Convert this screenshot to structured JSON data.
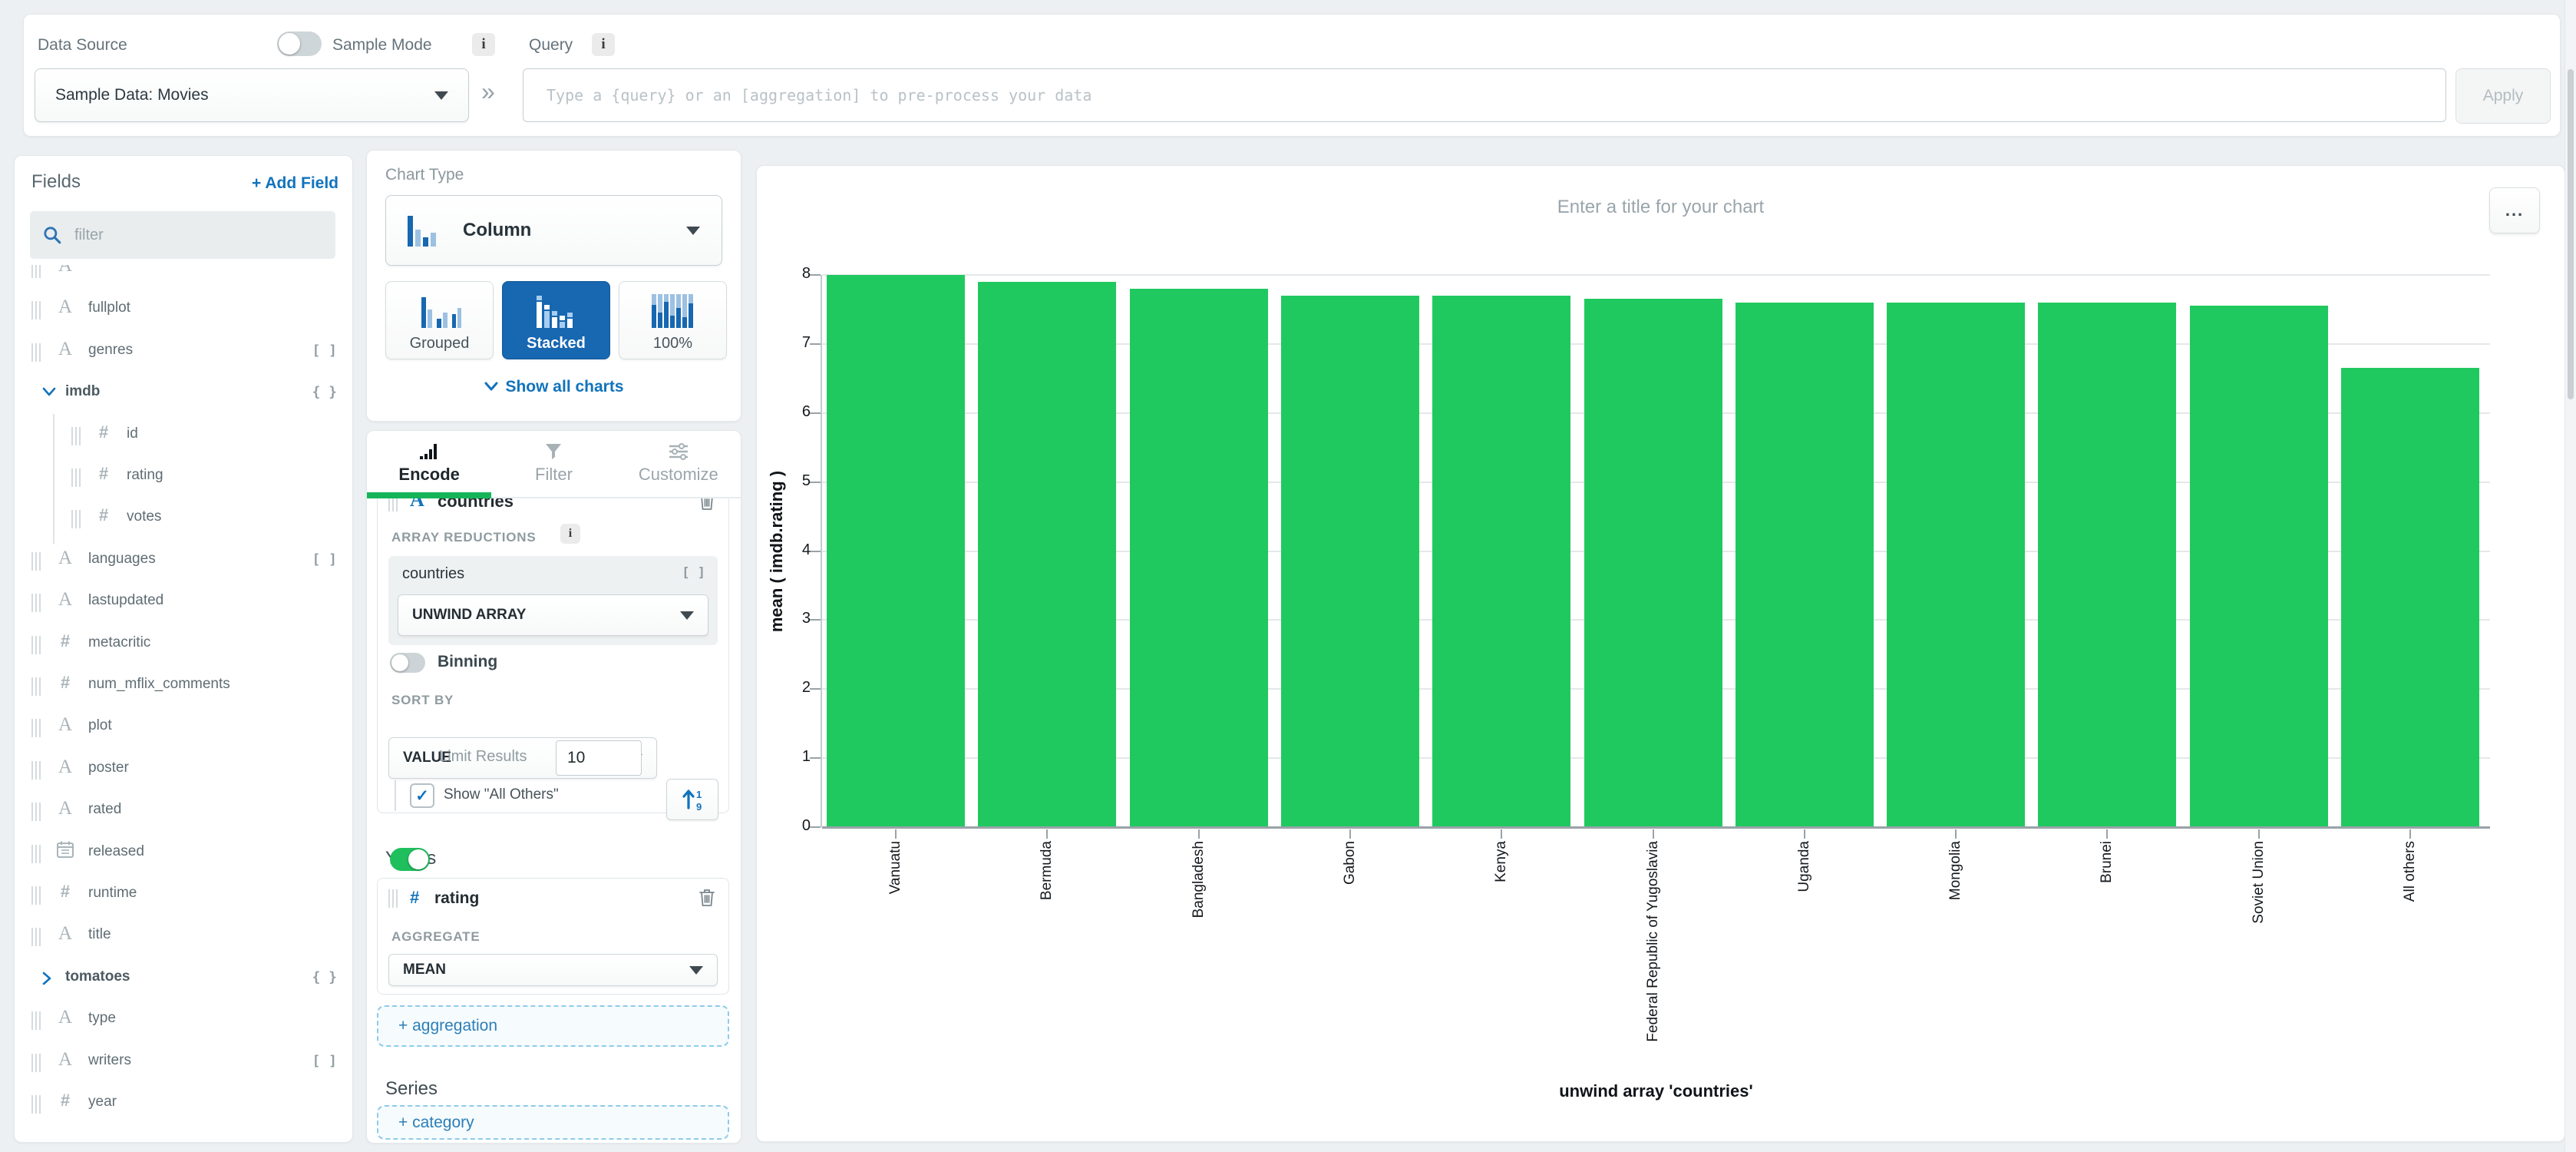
{
  "topbar": {
    "data_source_label": "Data Source",
    "sample_mode_label": "Sample Mode",
    "query_label": "Query",
    "data_source_value": "Sample Data: Movies",
    "query_placeholder": "Type a {query} or an [aggregation] to pre-process your data",
    "apply_label": "Apply",
    "double_chevron": "»",
    "info_glyph": "i"
  },
  "fields_panel": {
    "title": "Fields",
    "add_field_label": "+ Add Field",
    "filter_placeholder": "filter",
    "items": [
      {
        "label": "",
        "kind": "clipped",
        "badge": ""
      },
      {
        "label": "fullplot",
        "kind": "string",
        "badge": ""
      },
      {
        "label": "genres",
        "kind": "string",
        "badge": "[ ]"
      },
      {
        "label": "imdb",
        "kind": "object",
        "badge": "{ }",
        "state": "expanded"
      },
      {
        "label": "id",
        "kind": "number",
        "badge": "",
        "indent": 1
      },
      {
        "label": "rating",
        "kind": "number",
        "badge": "",
        "indent": 1
      },
      {
        "label": "votes",
        "kind": "number",
        "badge": "",
        "indent": 1
      },
      {
        "label": "languages",
        "kind": "string",
        "badge": "[ ]"
      },
      {
        "label": "lastupdated",
        "kind": "string",
        "badge": ""
      },
      {
        "label": "metacritic",
        "kind": "number",
        "badge": ""
      },
      {
        "label": "num_mflix_comments",
        "kind": "number",
        "badge": ""
      },
      {
        "label": "plot",
        "kind": "string",
        "badge": ""
      },
      {
        "label": "poster",
        "kind": "string",
        "badge": ""
      },
      {
        "label": "rated",
        "kind": "string",
        "badge": ""
      },
      {
        "label": "released",
        "kind": "date",
        "badge": ""
      },
      {
        "label": "runtime",
        "kind": "number",
        "badge": ""
      },
      {
        "label": "title",
        "kind": "string",
        "badge": ""
      },
      {
        "label": "tomatoes",
        "kind": "object",
        "badge": "{ }",
        "state": "collapsed"
      },
      {
        "label": "type",
        "kind": "string",
        "badge": ""
      },
      {
        "label": "writers",
        "kind": "string",
        "badge": "[ ]"
      },
      {
        "label": "year",
        "kind": "number",
        "badge": ""
      }
    ]
  },
  "chart_type_panel": {
    "title": "Chart Type",
    "selected_type": "Column",
    "variants": [
      "Grouped",
      "Stacked",
      "100%"
    ],
    "selected_variant": "Stacked",
    "show_all_label": "Show all charts"
  },
  "encode_panel": {
    "tabs": [
      "Encode",
      "Filter",
      "Customize"
    ],
    "active_tab": "Encode",
    "x_field": "countries",
    "array_reductions_label": "ARRAY REDUCTIONS",
    "reduction_field": "countries",
    "reduction_field_badge": "[ ]",
    "reduction_value": "UNWIND ARRAY",
    "binning_label": "Binning",
    "sort_by_label": "SORT BY",
    "sort_value": "VALUE",
    "limit_results_label": "Limit Results",
    "limit_value": "10",
    "show_all_others_label": "Show \"All Others\"",
    "y_axis_heading": "Y Axis",
    "y_field": "rating",
    "aggregate_label": "AGGREGATE",
    "aggregate_value": "MEAN",
    "add_aggregation_label": "+ aggregation",
    "series_heading": "Series",
    "add_category_label": "+ category"
  },
  "chart_panel": {
    "title_placeholder": "Enter a title for your chart",
    "menu_glyph": "..."
  },
  "chart_data": {
    "type": "bar",
    "title": "",
    "categories": [
      "Vanuatu",
      "Bermuda",
      "Bangladesh",
      "Gabon",
      "Kenya",
      "Federal Republic of Yugoslavia",
      "Uganda",
      "Mongolia",
      "Brunei",
      "Soviet Union",
      "All others"
    ],
    "values": [
      8.0,
      7.9,
      7.8,
      7.7,
      7.7,
      7.65,
      7.6,
      7.6,
      7.6,
      7.55,
      6.65
    ],
    "xlabel": "unwind array 'countries'",
    "ylabel": "mean ( imdb.rating )",
    "ylim": [
      0,
      8
    ],
    "ytick_step": 1,
    "grid": true,
    "legend": false,
    "bar_color": "#20c95f"
  },
  "colors": {
    "accent_blue": "#1173bc",
    "selected_variant_blue": "#1767b1",
    "toggle_green": "#1fbf5e",
    "tab_active_green": "#16b459",
    "bar_green": "#20c95f"
  }
}
